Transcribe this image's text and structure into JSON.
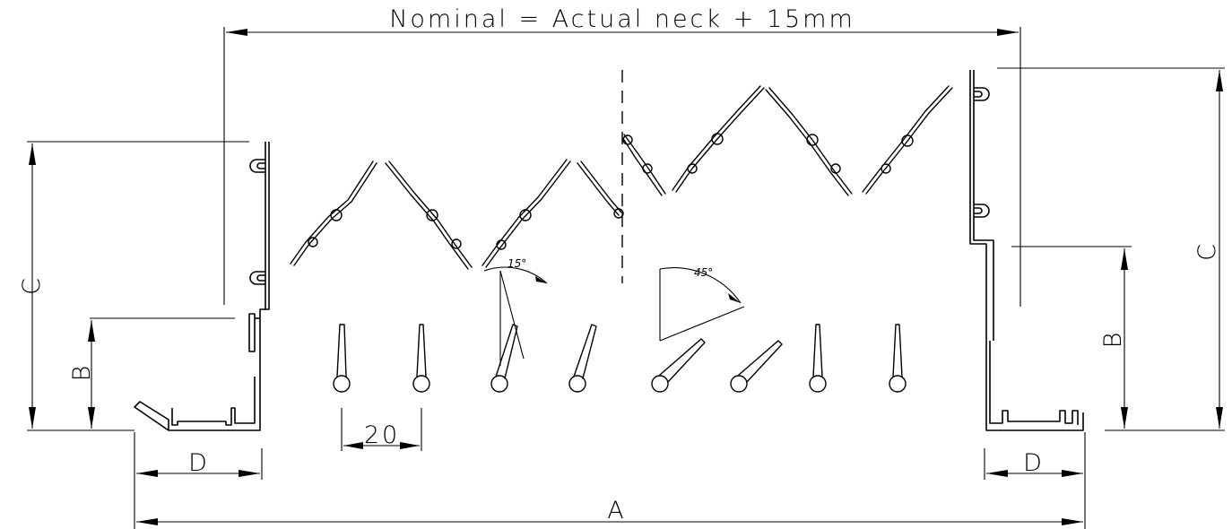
{
  "dimensions": {
    "nominal": "Nominal = Actual neck + 15mm",
    "a": "A",
    "b_left": "B",
    "b_right": "B",
    "c_left": "C",
    "c_right": "C",
    "d_left": "D",
    "d_right": "D",
    "pitch": "20"
  },
  "angles": {
    "small": "15°",
    "large": "45°"
  }
}
